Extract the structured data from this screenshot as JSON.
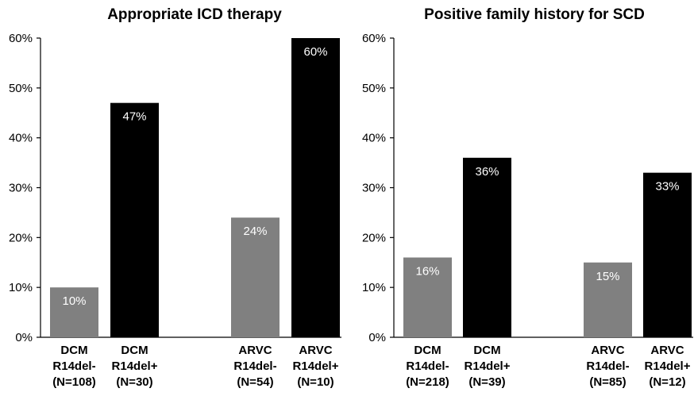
{
  "chart_data": [
    {
      "type": "bar",
      "title": "Appropriate ICD therapy",
      "ylim": [
        0,
        60
      ],
      "yticks": [
        "0%",
        "10%",
        "20%",
        "30%",
        "40%",
        "50%",
        "60%"
      ],
      "grid": false,
      "categories": [
        [
          "DCM",
          "R14del-",
          "(N=108)"
        ],
        [
          "DCM",
          "R14del+",
          "(N=30)"
        ],
        [
          "ARVC",
          "R14del-",
          "(N=54)"
        ],
        [
          "ARVC",
          "R14del+",
          "(N=10)"
        ]
      ],
      "values": [
        10,
        47,
        24,
        60
      ],
      "labels": [
        "10%",
        "47%",
        "24%",
        "60%"
      ],
      "colors": [
        "#808080",
        "#000000",
        "#808080",
        "#000000"
      ]
    },
    {
      "type": "bar",
      "title": "Positive family history for SCD",
      "ylim": [
        0,
        60
      ],
      "yticks": [
        "0%",
        "10%",
        "20%",
        "30%",
        "40%",
        "50%",
        "60%"
      ],
      "grid": false,
      "categories": [
        [
          "DCM",
          "R14del-",
          "(N=218)"
        ],
        [
          "DCM",
          "R14del+",
          "(N=39)"
        ],
        [
          "ARVC",
          "R14del-",
          "(N=85)"
        ],
        [
          "ARVC",
          "R14del+",
          "(N=12)"
        ]
      ],
      "values": [
        16,
        36,
        15,
        33
      ],
      "labels": [
        "16%",
        "36%",
        "15%",
        "33%"
      ],
      "colors": [
        "#808080",
        "#000000",
        "#808080",
        "#000000"
      ]
    }
  ]
}
